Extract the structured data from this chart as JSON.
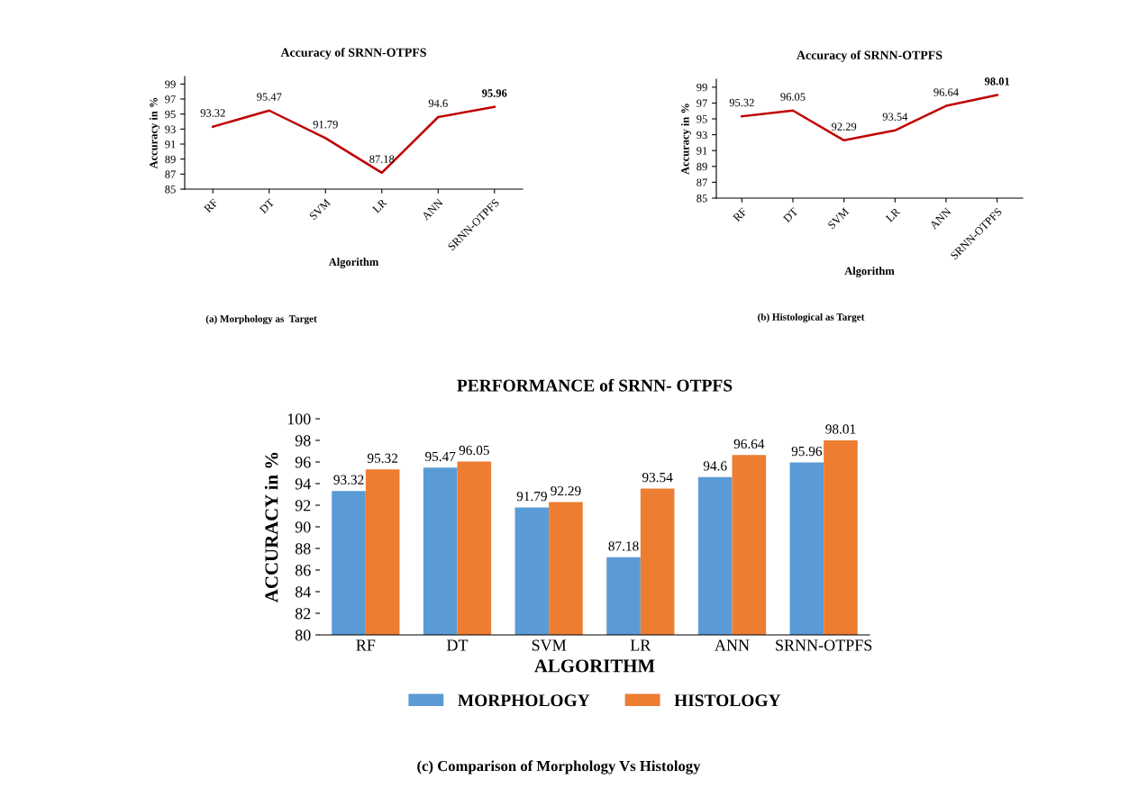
{
  "chart_data": [
    {
      "type": "line",
      "title": "Accuracy of SRNN-OTPFS",
      "xlabel": "Algorithm",
      "ylabel": "Accuracy in %",
      "categories": [
        "RF",
        "DT",
        "SVM",
        "LR",
        "ANN",
        "SRNN-OTPFS"
      ],
      "series": [
        {
          "color": "#c00000",
          "values": [
            93.32,
            95.47,
            91.79,
            87.18,
            94.6,
            95.96
          ]
        }
      ],
      "ylim": [
        85,
        100
      ],
      "yticks": [
        85,
        87,
        89,
        91,
        93,
        95,
        97,
        99
      ],
      "data_labels": true,
      "annotations": [
        "(a) Morphology as  Target"
      ]
    },
    {
      "type": "line",
      "title": "Accuracy of SRNN-OTPFS",
      "xlabel": "Algorithm",
      "ylabel": "Accuracy in %",
      "categories": [
        "RF",
        "DT",
        "SVM",
        "LR",
        "ANN",
        "SRNN-OTPFS"
      ],
      "series": [
        {
          "color": "#c00000",
          "values": [
            95.32,
            96.05,
            92.29,
            93.54,
            96.64,
            98.01
          ]
        }
      ],
      "ylim": [
        85,
        100
      ],
      "yticks": [
        85,
        87,
        89,
        91,
        93,
        95,
        97,
        99
      ],
      "data_labels": true,
      "annotations": [
        "(b) Histological as Target"
      ]
    },
    {
      "type": "bar",
      "title": "PERFORMANCE of SRNN- OTPFS",
      "xlabel": "ALGORITHM",
      "ylabel": "ACCURACY in %",
      "categories": [
        "RF",
        "DT",
        "SVM",
        "LR",
        "ANN",
        "SRNN-OTPFS"
      ],
      "series": [
        {
          "name": "MORPHOLOGY",
          "color": "#5b9bd5",
          "values": [
            93.32,
            95.47,
            91.79,
            87.18,
            94.6,
            95.96
          ]
        },
        {
          "name": "HISTOLOGY",
          "color": "#ed7d31",
          "values": [
            95.32,
            96.05,
            92.29,
            93.54,
            96.64,
            98.01
          ]
        }
      ],
      "ylim": [
        80,
        100
      ],
      "yticks": [
        80,
        82,
        84,
        86,
        88,
        90,
        92,
        94,
        96,
        98,
        100
      ],
      "data_labels": true,
      "legend": "bottom",
      "annotations": [
        "(c) Comparison of Morphology Vs Histology"
      ]
    }
  ]
}
